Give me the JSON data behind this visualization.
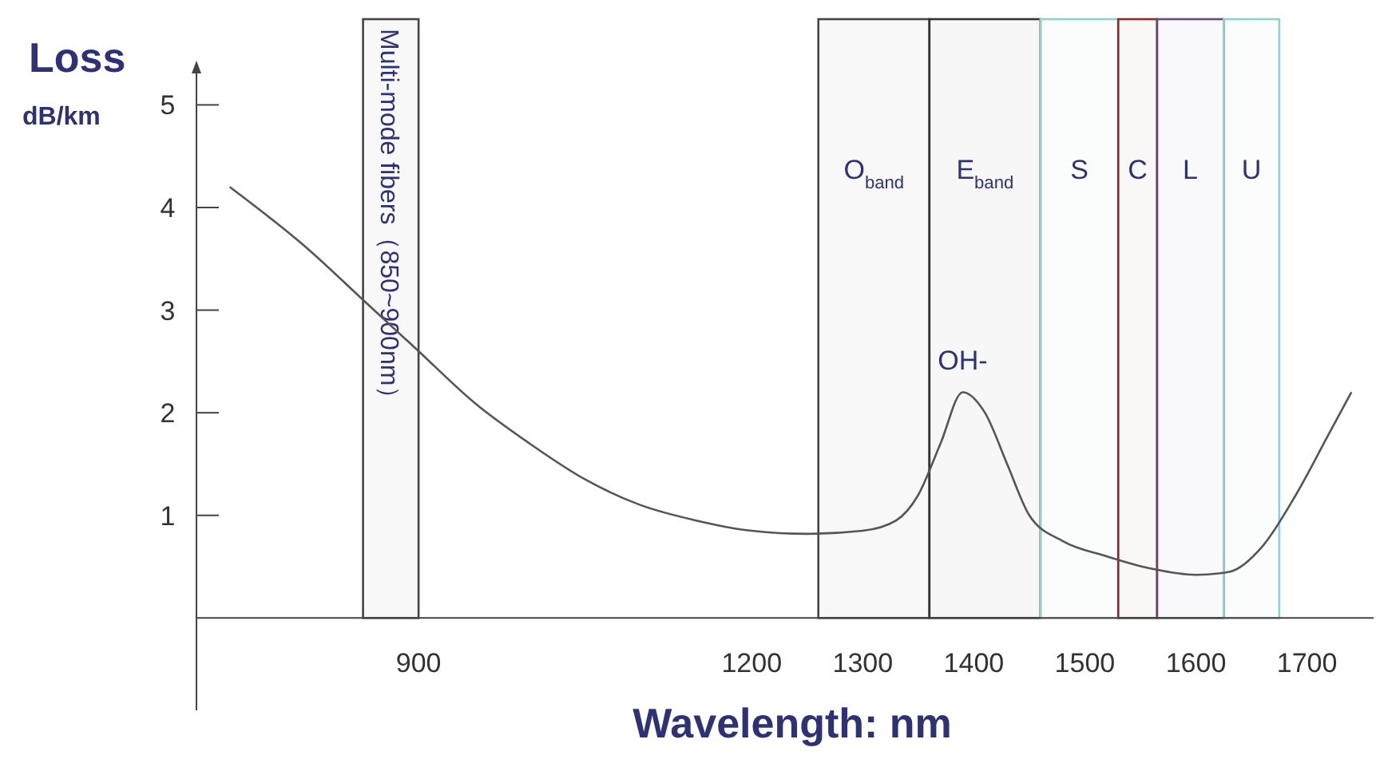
{
  "chart_data": {
    "type": "line",
    "xlabel": "Wavelength: nm",
    "ylabel": "Loss dB/km",
    "xlim": [
      700,
      1760
    ],
    "ylim": [
      -0.9,
      5.4
    ],
    "xticks": [
      900,
      1200,
      1300,
      1400,
      1500,
      1600,
      1700
    ],
    "yticks": [
      1,
      2,
      3,
      4,
      5
    ],
    "grid": false,
    "marker": "none",
    "line_style": "solid",
    "series": [
      {
        "color": "#555555",
        "x": [
          730,
          800,
          850,
          900,
          950,
          1000,
          1050,
          1100,
          1150,
          1200,
          1250,
          1300,
          1330,
          1350,
          1370,
          1390,
          1410,
          1430,
          1450,
          1480,
          1520,
          1560,
          1600,
          1630,
          1660,
          1690,
          1720,
          1740
        ],
        "values": [
          4.2,
          3.6,
          3.1,
          2.6,
          2.1,
          1.7,
          1.35,
          1.1,
          0.95,
          0.85,
          0.82,
          0.85,
          0.95,
          1.2,
          1.7,
          2.2,
          2.0,
          1.5,
          1.0,
          0.75,
          0.6,
          0.48,
          0.42,
          0.45,
          0.7,
          1.2,
          1.8,
          2.2
        ]
      }
    ],
    "bands": [
      {
        "axis": "x",
        "from": 850,
        "to": 900,
        "label": "Multi-mode fibers（850~900nm）",
        "color": "#444444"
      },
      {
        "axis": "x",
        "from": 1260,
        "to": 1360,
        "label": "O$_{band}$",
        "color": "#444444"
      },
      {
        "axis": "x",
        "from": 1360,
        "to": 1460,
        "label": "E$_{band}$",
        "color": "#333333"
      },
      {
        "axis": "x",
        "from": 1460,
        "to": 1530,
        "label": "S",
        "color": "#8fd0d0"
      },
      {
        "axis": "x",
        "from": 1530,
        "to": 1565,
        "label": "C",
        "color": "#8b2a2a"
      },
      {
        "axis": "x",
        "from": 1565,
        "to": 1625,
        "label": "L",
        "color": "#6a4a7a"
      },
      {
        "axis": "x",
        "from": 1625,
        "to": 1675,
        "label": "U",
        "color": "#8fd0d0"
      }
    ],
    "annotations": [
      {
        "text": "OH-",
        "x": 1390,
        "y": 2.2
      }
    ]
  }
}
